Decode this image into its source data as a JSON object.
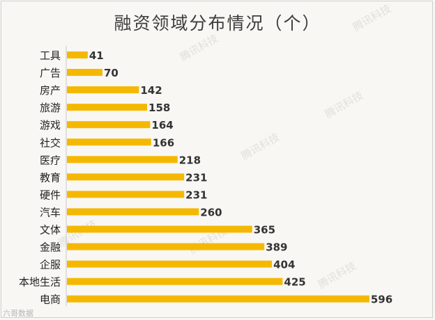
{
  "chart_data": {
    "type": "bar",
    "orientation": "horizontal",
    "title": "融资领域分布情况（个）",
    "categories": [
      "工具",
      "广告",
      "房产",
      "旅游",
      "游戏",
      "社交",
      "医疗",
      "教育",
      "硬件",
      "汽车",
      "文体",
      "金融",
      "企服",
      "本地生活",
      "电商"
    ],
    "values": [
      41,
      70,
      142,
      158,
      164,
      166,
      218,
      231,
      231,
      260,
      365,
      389,
      404,
      425,
      596
    ],
    "xlim": [
      0,
      630
    ],
    "grid": false,
    "legend": "none",
    "bar_color": "#f5b800"
  },
  "watermark": {
    "text": "腾讯科技",
    "corner_text": "六哥数据"
  }
}
